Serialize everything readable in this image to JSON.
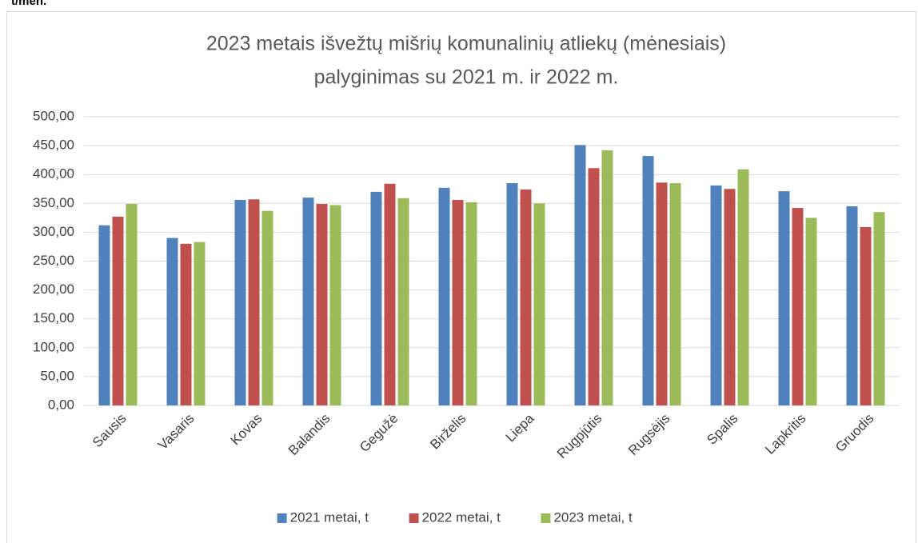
{
  "note": "t/mėn.",
  "chart_data": {
    "type": "bar",
    "title": [
      "2023 metais išvežtų mišrių komunalinių atliekų (mėnesiais)",
      "palyginimas su 2021 m. ir 2022 m."
    ],
    "categories": [
      "Sausis",
      "Vasaris",
      "Kovas",
      "Balandis",
      "Gegužė",
      "Birželis",
      "Liepa",
      "Rugpjūtis",
      "Rugsėjis",
      "Spalis",
      "Lapkritis",
      "Gruodis"
    ],
    "series": [
      {
        "name": "2021 metai, t",
        "color": "#4f81bd",
        "values": [
          312,
          290,
          356,
          360,
          370,
          377,
          385,
          451,
          432,
          381,
          371,
          345
        ]
      },
      {
        "name": "2022 metai, t",
        "color": "#c0504d",
        "values": [
          327,
          280,
          357,
          349,
          384,
          356,
          374,
          411,
          386,
          375,
          342,
          309
        ]
      },
      {
        "name": "2023 metai, t",
        "color": "#9bbb59",
        "values": [
          349,
          283,
          337,
          347,
          359,
          352,
          350,
          442,
          385,
          409,
          325,
          335
        ]
      }
    ],
    "ylim": [
      0,
      500
    ],
    "yticks": [
      {
        "value": 0,
        "label": "0,00"
      },
      {
        "value": 50,
        "label": "50,00"
      },
      {
        "value": 100,
        "label": "100,00"
      },
      {
        "value": 150,
        "label": "150,00"
      },
      {
        "value": 200,
        "label": "200,00"
      },
      {
        "value": 250,
        "label": "250,00"
      },
      {
        "value": 300,
        "label": "300,00"
      },
      {
        "value": 350,
        "label": "350,00"
      },
      {
        "value": 400,
        "label": "400,00"
      },
      {
        "value": 450,
        "label": "450,00"
      },
      {
        "value": 500,
        "label": "500,00"
      }
    ],
    "grid": true,
    "legend": "bottom"
  }
}
